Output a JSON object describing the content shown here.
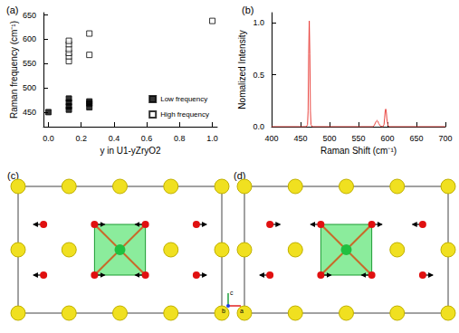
{
  "panels": [
    "(a)",
    "(b)",
    "(c)",
    "(d)"
  ],
  "chart_data": [
    {
      "type": "scatter",
      "x_label": "y in U1-yZryO2",
      "y_label": "Raman frequency (cm⁻¹)",
      "xlim": [
        -0.03,
        1.03
      ],
      "xticks": [
        {
          "value": 0,
          "label": "0.0"
        },
        0.2,
        0.4,
        0.6,
        0.8,
        {
          "value": 1,
          "label": "1.0"
        }
      ],
      "ylim": [
        420,
        655
      ],
      "yticks": [
        450,
        500,
        550,
        600,
        650
      ],
      "grid": false,
      "legend": "lower right",
      "series": [
        {
          "name": "Low frequency",
          "marker": "square",
          "color": "#000000",
          "x": [
            0,
            0.125,
            0.125,
            0.125,
            0.125,
            0.25,
            0.25,
            0.25
          ],
          "values": [
            450,
            455,
            462,
            470,
            478,
            460,
            468,
            472
          ]
        },
        {
          "name": "High frequency",
          "marker": "open_square",
          "color": "#000000",
          "x": [
            0.125,
            0.125,
            0.125,
            0.125,
            0.125,
            0.125,
            0.25,
            0.25,
            1.0
          ],
          "values": [
            555,
            565,
            572,
            580,
            590,
            597,
            568,
            612,
            638
          ]
        }
      ]
    },
    {
      "type": "line",
      "x_label": "Raman Shift (cm⁻¹)",
      "y_label": "Nomalized Intensity",
      "xlim": [
        400,
        700
      ],
      "xticks": [
        400,
        450,
        500,
        550,
        600,
        650,
        700
      ],
      "ylim": [
        0,
        1.1
      ],
      "yticks": [
        {
          "value": 0,
          "label": "0.0"
        },
        0.5,
        {
          "value": 1,
          "label": "1.0"
        }
      ],
      "grid": false,
      "series": [
        {
          "color": "#e8413c",
          "x": [
            400,
            460,
            462,
            463,
            464,
            465,
            466,
            467,
            468,
            470,
            574,
            577,
            579,
            581,
            582,
            583,
            585,
            588,
            592,
            594,
            595,
            596,
            597,
            598,
            599,
            601,
            603,
            700
          ],
          "values": [
            0,
            0,
            0.02,
            0.15,
            0.7,
            1.02,
            0.7,
            0.15,
            0.02,
            0,
            0,
            0.01,
            0.035,
            0.055,
            0.06,
            0.055,
            0.03,
            0.005,
            0,
            0.02,
            0.08,
            0.15,
            0.17,
            0.14,
            0.07,
            0.01,
            0,
            0
          ]
        }
      ]
    }
  ],
  "structure": {
    "axes": [
      "c",
      "a",
      "b"
    ]
  }
}
